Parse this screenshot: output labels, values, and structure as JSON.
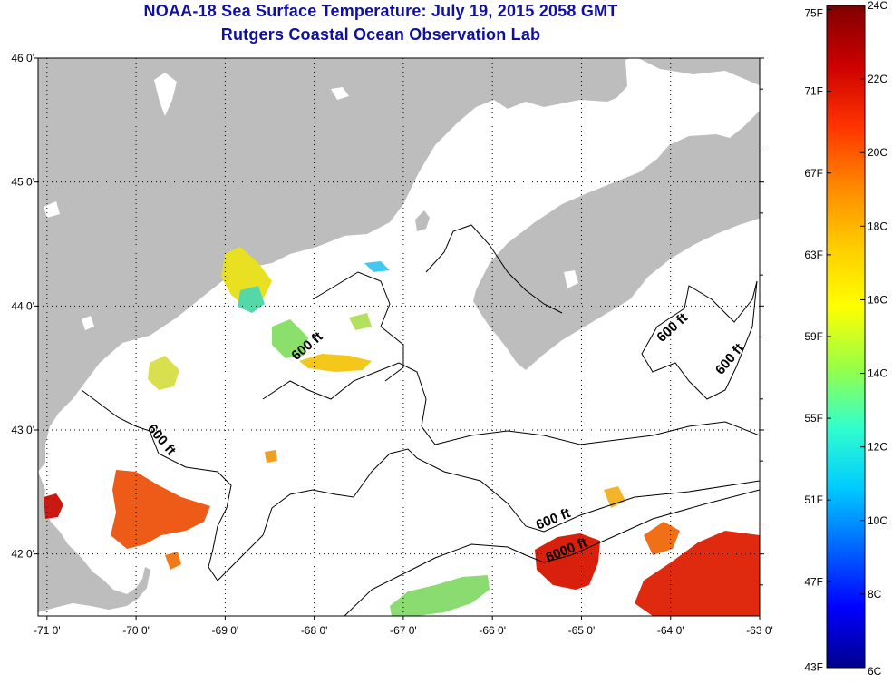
{
  "header": {
    "title": "NOAA-18 Sea Surface Temperature:  July 19, 2015 2058 GMT",
    "subtitle": "Rutgers Coastal Ocean Observation Lab"
  },
  "map": {
    "lon_range": [
      -71.1,
      -63.0
    ],
    "lat_range": [
      41.5,
      46.0
    ],
    "lon_ticks": [
      {
        "v": -71,
        "label": "-71 0'"
      },
      {
        "v": -70,
        "label": "-70 0'"
      },
      {
        "v": -69,
        "label": "-69 0'"
      },
      {
        "v": -68,
        "label": "-68 0'"
      },
      {
        "v": -67,
        "label": "-67 0'"
      },
      {
        "v": -66,
        "label": "-66 0'"
      },
      {
        "v": -65,
        "label": "-65 0'"
      },
      {
        "v": -64,
        "label": "-64 0'"
      },
      {
        "v": -63,
        "label": "-63 0'"
      }
    ],
    "lat_ticks": [
      {
        "v": 46,
        "label": "46 0'"
      },
      {
        "v": 45,
        "label": "45 0'"
      },
      {
        "v": 44,
        "label": "44 0'"
      },
      {
        "v": 43,
        "label": "43 0'"
      },
      {
        "v": 42,
        "label": "42 0'"
      }
    ],
    "land_color": "#bdbdbd",
    "ocean_color": "#ffffff",
    "grid": "dotted",
    "depth_labels": [
      {
        "text": "600 ft",
        "lon": -68.05,
        "lat": 43.65,
        "angle": -40
      },
      {
        "text": "600 ft",
        "lon": -69.75,
        "lat": 42.9,
        "angle": 50
      },
      {
        "text": "600 ft",
        "lon": -65.3,
        "lat": 42.25,
        "angle": -22
      },
      {
        "text": "6000 ft",
        "lon": -65.15,
        "lat": 42.0,
        "angle": -22
      },
      {
        "text": "600 ft",
        "lon": -63.95,
        "lat": 43.8,
        "angle": -42
      },
      {
        "text": "600 ft",
        "lon": -63.3,
        "lat": 43.55,
        "angle": -50
      }
    ]
  },
  "colorbar": {
    "top_c": 24,
    "bottom_c": 6,
    "stops": [
      "#800000",
      "#cc0000",
      "#ff3300",
      "#ff8800",
      "#ffcc00",
      "#ffff00",
      "#99ff44",
      "#33ffcc",
      "#00ccff",
      "#0066ff",
      "#0000ff",
      "#00008b"
    ],
    "c_ticks": [
      {
        "v": 24,
        "label": "24C"
      },
      {
        "v": 22,
        "label": "22C"
      },
      {
        "v": 20,
        "label": "20C"
      },
      {
        "v": 18,
        "label": "18C"
      },
      {
        "v": 16,
        "label": "16C"
      },
      {
        "v": 14,
        "label": "14C"
      },
      {
        "v": 12,
        "label": "12C"
      },
      {
        "v": 10,
        "label": "10C"
      },
      {
        "v": 8,
        "label": "8C"
      },
      {
        "v": 6,
        "label": "6C"
      }
    ],
    "f_ticks": [
      {
        "v": 75,
        "label": "75F"
      },
      {
        "v": 71,
        "label": "71F"
      },
      {
        "v": 67,
        "label": "67F"
      },
      {
        "v": 63,
        "label": "63F"
      },
      {
        "v": 59,
        "label": "59F"
      },
      {
        "v": 55,
        "label": "55F"
      },
      {
        "v": 51,
        "label": "51F"
      },
      {
        "v": 47,
        "label": "47F"
      },
      {
        "v": 43,
        "label": "43F"
      }
    ]
  }
}
